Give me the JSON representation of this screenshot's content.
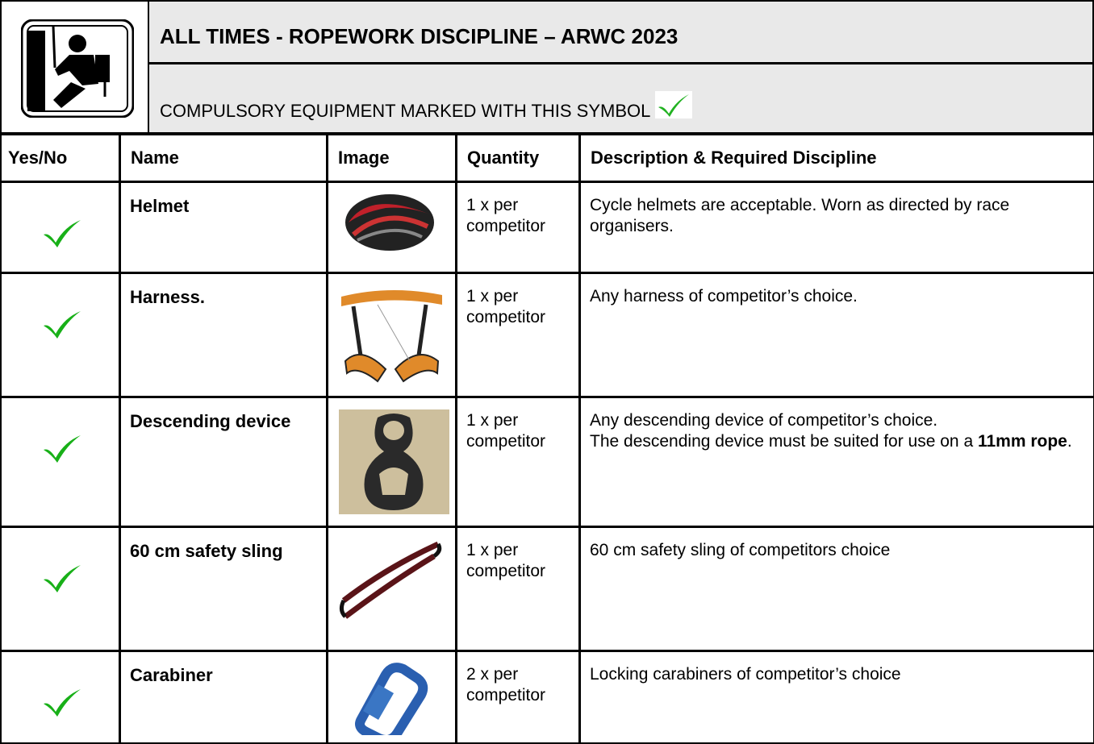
{
  "header": {
    "title": "ALL TIMES - ROPEWORK DISCIPLINE – ARWC 2023",
    "subtitle": "COMPULSORY EQUIPMENT MARKED WITH THIS SYMBOL"
  },
  "table": {
    "columns": [
      "Yes/No",
      "Name",
      "Image",
      "Quantity",
      "Description & Required Discipline"
    ],
    "rows": [
      {
        "name": "Helmet",
        "quantity": "1 x per competitor",
        "description": [
          [
            {
              "text": "Cycle helmets are acceptable. Worn as directed by race organisers.",
              "bold": false
            }
          ]
        ]
      },
      {
        "name": "Harness.",
        "quantity": "1 x per competitor",
        "description": [
          [
            {
              "text": "Any harness of competitor’s choice.",
              "bold": false
            }
          ]
        ]
      },
      {
        "name": "Descending device",
        "quantity": "1 x per competitor",
        "description": [
          [
            {
              "text": "Any descending device of competitor’s choice.",
              "bold": false
            }
          ],
          [
            {
              "text": "The descending device must be suited for use on a ",
              "bold": false
            },
            {
              "text": "11mm rope",
              "bold": true
            },
            {
              "text": ".",
              "bold": false
            }
          ]
        ]
      },
      {
        "name": "60 cm safety sling",
        "quantity": "1 x per competitor",
        "description": [
          [
            {
              "text": "60 cm safety sling of competitors choice",
              "bold": false
            }
          ]
        ]
      },
      {
        "name": "Carabiner",
        "quantity": "2 x per competitor",
        "description": [
          [
            {
              "text": "Locking carabiners of competitor’s choice",
              "bold": false
            }
          ]
        ]
      }
    ]
  }
}
